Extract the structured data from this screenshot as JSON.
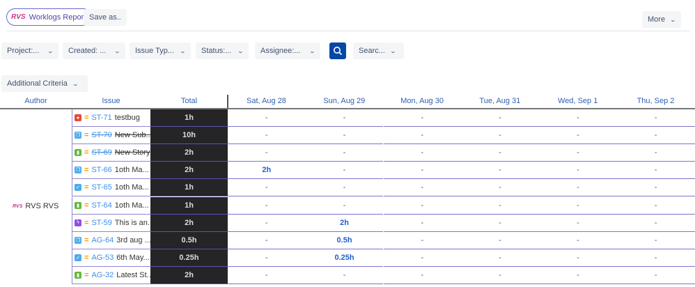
{
  "toolbar": {
    "report_label": "Worklogs Report",
    "logo_text": "RVS",
    "save_as": "Save as..",
    "more": "More"
  },
  "filters": [
    {
      "label": "Project:..."
    },
    {
      "label": "Created: ..."
    },
    {
      "label": "Issue Typ..."
    },
    {
      "label": "Status:..."
    },
    {
      "label": "Assignee:..."
    }
  ],
  "search_filter": "Searc...",
  "additional_criteria": "Additional Criteria",
  "columns": {
    "author": "Author",
    "issue": "Issue",
    "total": "Total",
    "days": [
      "Sat, Aug 28",
      "Sun, Aug 29",
      "Mon, Aug 30",
      "Tue, Aug 31",
      "Wed, Sep 1",
      "Thu, Sep 2"
    ]
  },
  "author": {
    "name": "RVS RVS",
    "logo": "RVS"
  },
  "rows": [
    {
      "type": "bug",
      "key": "ST-71",
      "summary": "testbug",
      "done": false,
      "total": "1h",
      "days": [
        "-",
        "-",
        "-",
        "-",
        "-",
        "-"
      ]
    },
    {
      "type": "subtask",
      "key": "ST-70",
      "summary": "New Sub...",
      "done": true,
      "total": "10h",
      "days": [
        "-",
        "-",
        "-",
        "-",
        "-",
        "-"
      ]
    },
    {
      "type": "story",
      "key": "ST-69",
      "summary": "New Story",
      "done": true,
      "total": "2h",
      "days": [
        "-",
        "-",
        "-",
        "-",
        "-",
        "-"
      ]
    },
    {
      "type": "subtask",
      "key": "ST-66",
      "summary": "1oth Ma...",
      "done": false,
      "total": "2h",
      "days": [
        "2h",
        "-",
        "-",
        "-",
        "-",
        "-"
      ]
    },
    {
      "type": "task",
      "key": "ST-65",
      "summary": "1oth Ma...",
      "done": false,
      "total": "1h",
      "days": [
        "-",
        "-",
        "-",
        "-",
        "-",
        "-"
      ]
    },
    {
      "type": "story",
      "key": "ST-64",
      "summary": "1oth Ma...",
      "done": false,
      "total": "1h",
      "days": [
        "-",
        "-",
        "-",
        "-",
        "-",
        "-"
      ]
    },
    {
      "type": "epic",
      "key": "ST-59",
      "summary": "This is an...",
      "done": false,
      "total": "2h",
      "days": [
        "-",
        "2h",
        "-",
        "-",
        "-",
        "-"
      ]
    },
    {
      "type": "subtask",
      "key": "AG-64",
      "summary": "3rd aug ...",
      "done": false,
      "total": "0.5h",
      "days": [
        "-",
        "0.5h",
        "-",
        "-",
        "-",
        "-"
      ]
    },
    {
      "type": "task",
      "key": "AG-53",
      "summary": "6th May...",
      "done": false,
      "total": "0.25h",
      "days": [
        "-",
        "0.25h",
        "-",
        "-",
        "-",
        "-"
      ]
    },
    {
      "type": "story",
      "key": "AG-32",
      "summary": "Latest St...",
      "done": false,
      "total": "2h",
      "days": [
        "-",
        "-",
        "-",
        "-",
        "-",
        "-"
      ]
    }
  ],
  "colors": {
    "bug": "#e5493a",
    "subtask": "#4bade8",
    "story": "#63ba3c",
    "task": "#4bade8",
    "epic": "#904ee2",
    "accent": "#0747a6"
  }
}
